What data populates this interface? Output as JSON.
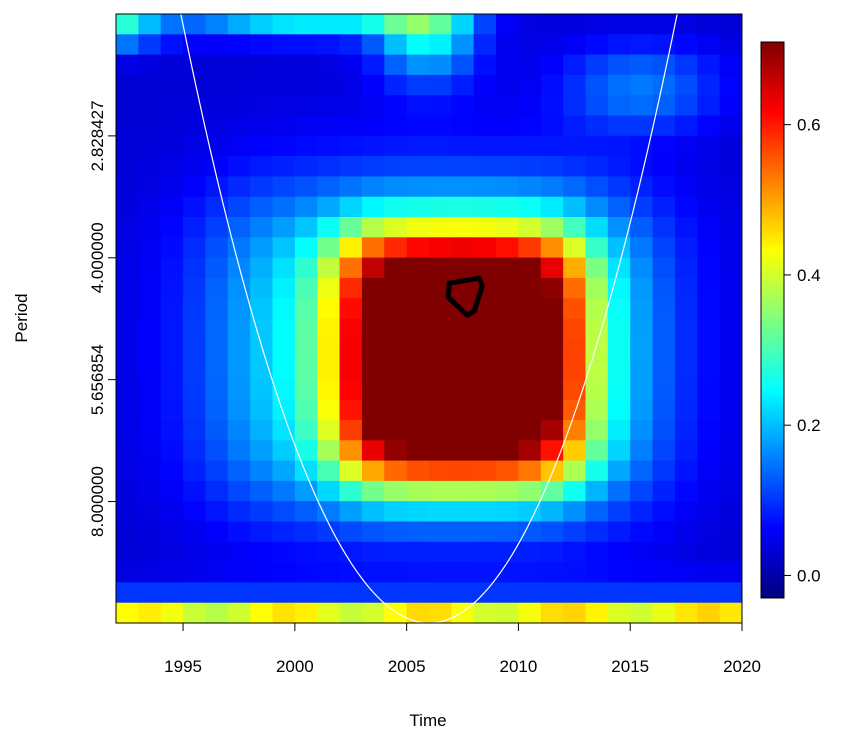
{
  "chart_data": {
    "type": "heatmap",
    "title": "",
    "xlabel": "Time",
    "ylabel": "Period",
    "x_ticks": [
      1995,
      2000,
      2005,
      2010,
      2015,
      2020
    ],
    "x_tick_labels": [
      "1995",
      "2000",
      "2005",
      "2010",
      "2015",
      "2020"
    ],
    "y_ticks": [
      2.828427,
      4.0,
      5.656854,
      8.0
    ],
    "y_tick_labels": [
      "2.828427",
      "4.000000",
      "5.656854",
      "8.000000"
    ],
    "xlim": [
      1992,
      2020
    ],
    "ylim_period": [
      2.0,
      11.3
    ],
    "y_scale": "log2 (reversed, short periods at top)",
    "colorbar": {
      "ticks": [
        0.0,
        0.2,
        0.4,
        0.6
      ],
      "tick_labels": [
        "0.0",
        "0.2",
        "0.4",
        "0.6"
      ],
      "range": [
        -0.03,
        0.71
      ],
      "palette": "jet (dark blue → blue → cyan → yellow → red → dark red)"
    },
    "regions": [
      {
        "label": "high coherence block",
        "time": [
          2002,
          2013
        ],
        "period": [
          3.8,
          7.5
        ],
        "value": 0.68
      },
      {
        "label": "peak",
        "time": [
          2006,
          2009
        ],
        "period": [
          4.0,
          5.8
        ],
        "value": 0.71
      },
      {
        "label": "low band",
        "time": [
          1992,
          2002
        ],
        "period": [
          2.5,
          3.5
        ],
        "value": 0.0
      },
      {
        "label": "low band",
        "time": [
          1992,
          2020
        ],
        "period": [
          8.5,
          10.5
        ],
        "value": 0.05
      }
    ],
    "significance_contour": {
      "time_center": 2007.8,
      "period_center": 4.5,
      "value": 0.7
    },
    "cone_of_influence": {
      "vertex_time": 2006,
      "color": "#ffffff"
    }
  }
}
